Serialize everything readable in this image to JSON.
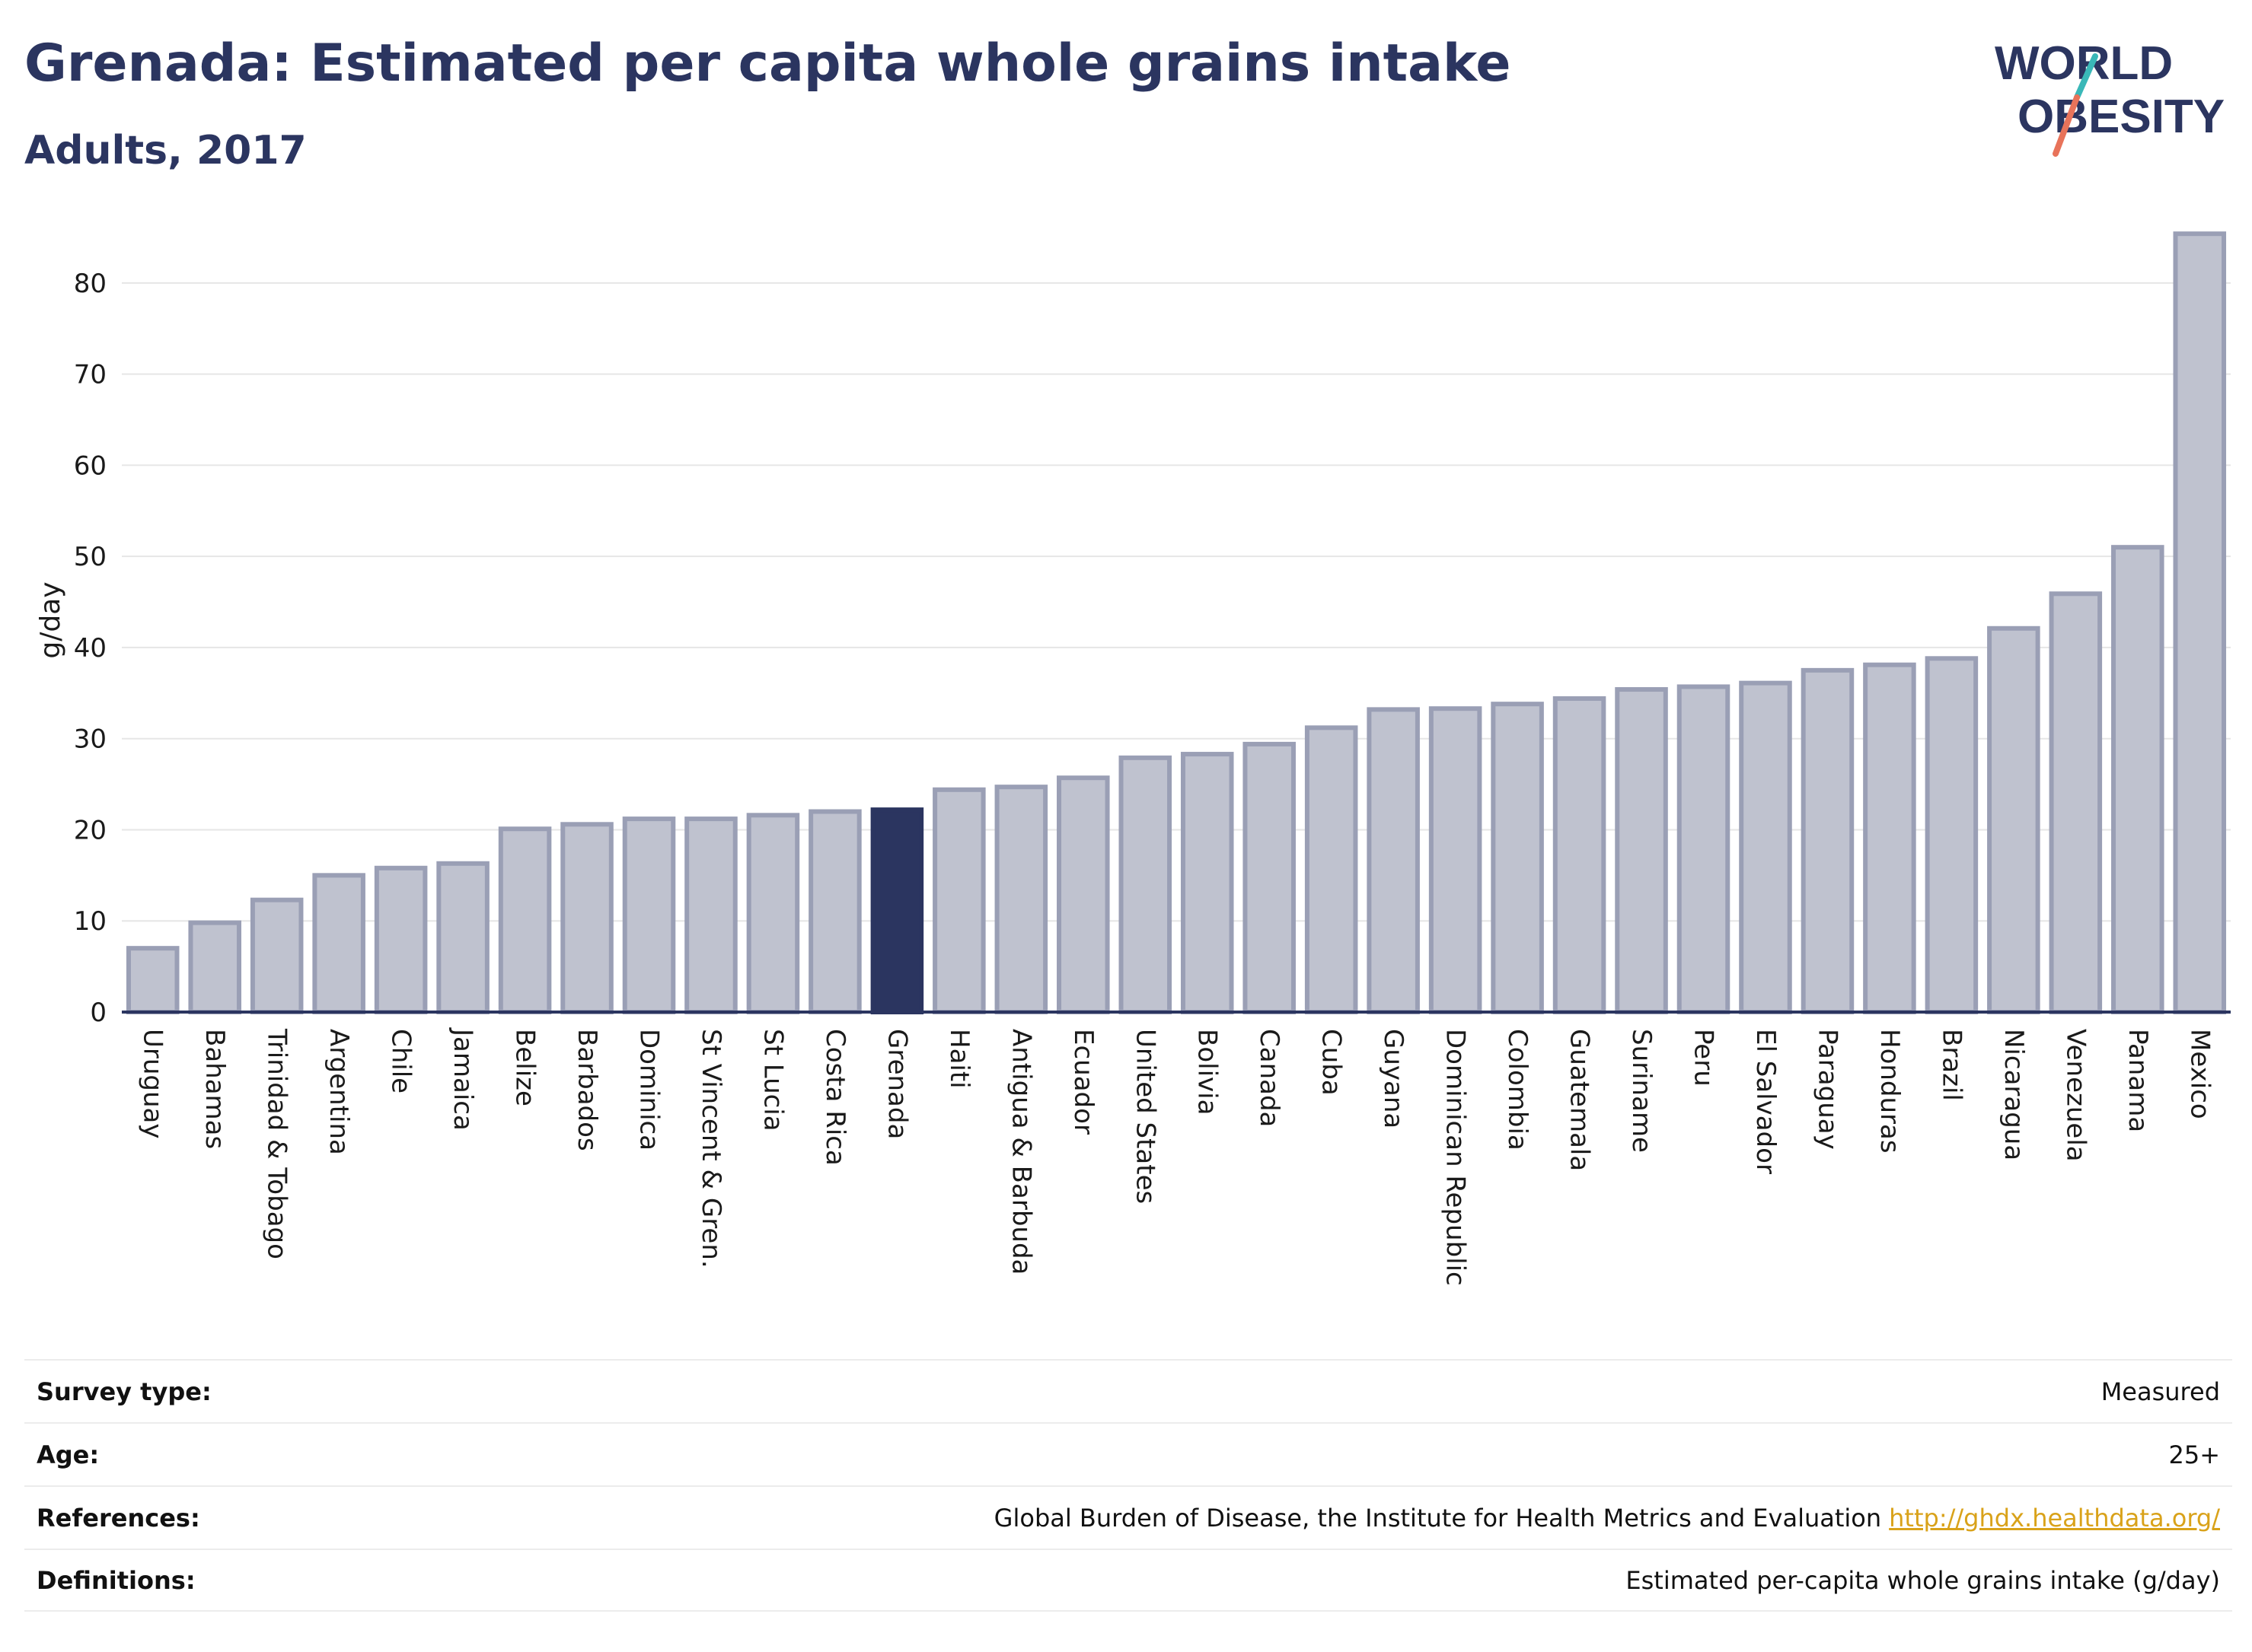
{
  "title": "Grenada: Estimated per capita whole grains intake",
  "subtitle": "Adults, 2017",
  "logo": {
    "line1": "WORLD",
    "line2": "OBESITY"
  },
  "colors": {
    "highlight": "#2b3560",
    "bar": "#bfc2cf",
    "bar_border": "#9a9fb5",
    "link": "#d9a21a",
    "title": "#2b3560"
  },
  "chart_data": {
    "type": "bar",
    "ylabel": "g/day",
    "xlabel": "",
    "ylim": [
      0,
      86
    ],
    "yticks": [
      0,
      10,
      20,
      30,
      40,
      50,
      60,
      70,
      80
    ],
    "grid": true,
    "highlight": "Grenada",
    "categories": [
      "Uruguay",
      "Bahamas",
      "Trinidad & Tobago",
      "Argentina",
      "Chile",
      "Jamaica",
      "Belize",
      "Barbados",
      "Dominica",
      "St Vincent & Gren.",
      "St Lucia",
      "Costa Rica",
      "Grenada",
      "Haiti",
      "Antigua & Barbuda",
      "Ecuador",
      "United States",
      "Bolivia",
      "Canada",
      "Cuba",
      "Guyana",
      "Dominican Republic",
      "Colombia",
      "Guatemala",
      "Suriname",
      "Peru",
      "El Salvador",
      "Paraguay",
      "Honduras",
      "Brazil",
      "Nicaragua",
      "Venezuela",
      "Panama",
      "Mexico"
    ],
    "values": [
      7,
      9.8,
      12.3,
      15,
      15.8,
      16.3,
      20.1,
      20.6,
      21.2,
      21.2,
      21.6,
      22,
      22.2,
      24.4,
      24.7,
      25.7,
      27.9,
      28.3,
      29.4,
      31.2,
      33.2,
      33.3,
      33.8,
      34.4,
      35.4,
      35.7,
      36.1,
      37.5,
      38.1,
      38.8,
      42.1,
      45.9,
      51,
      85.4
    ]
  },
  "info": [
    {
      "label": "Survey type:",
      "value": "Measured",
      "link": ""
    },
    {
      "label": "Age:",
      "value": "25+",
      "link": ""
    },
    {
      "label": "References:",
      "value": "Global Burden of Disease, the Institute for Health Metrics and Evaluation",
      "link": "http://ghdx.healthdata.org/"
    },
    {
      "label": "Definitions:",
      "value": "Estimated per-capita whole grains intake (g/day)",
      "link": ""
    }
  ]
}
